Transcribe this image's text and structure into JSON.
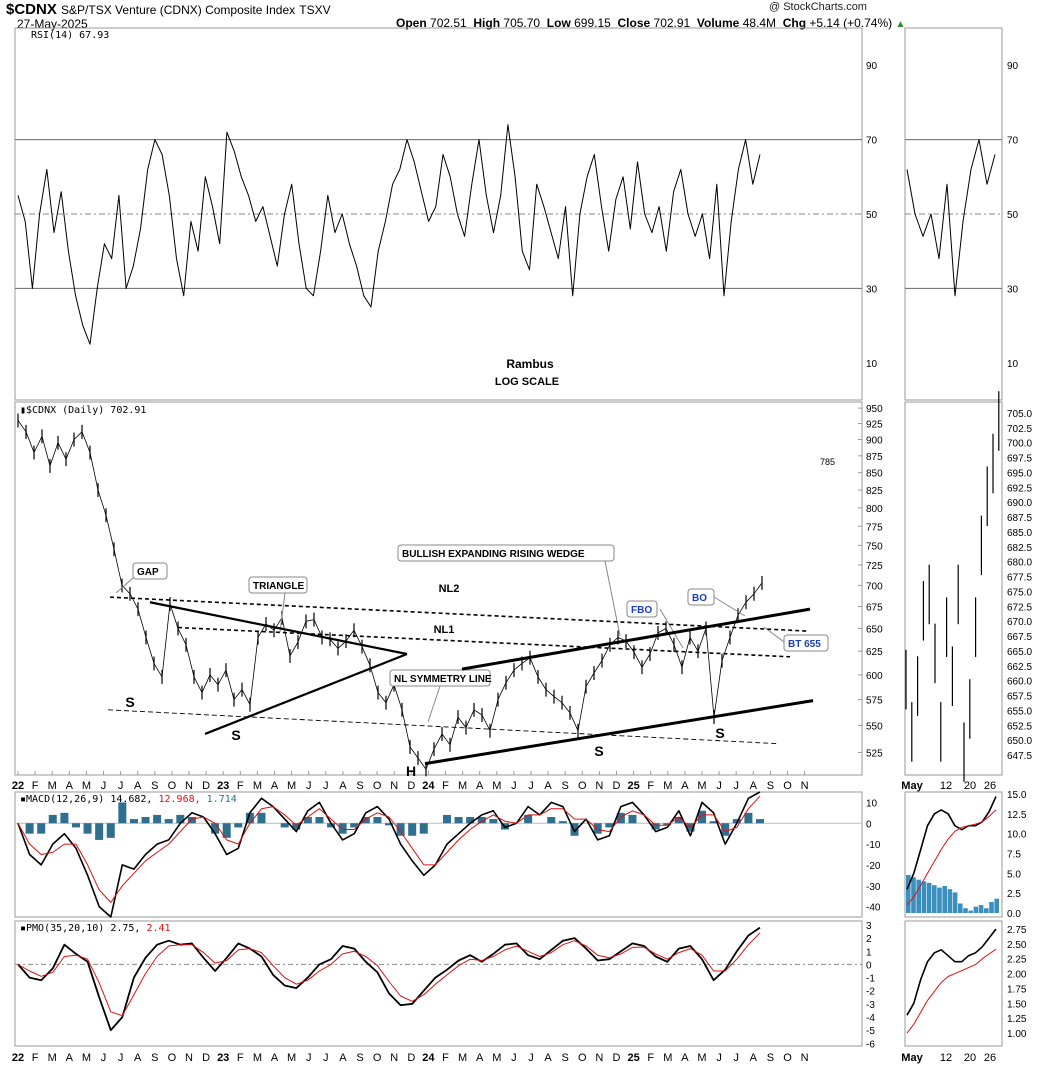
{
  "header": {
    "symbol": "$CDNX",
    "name": "S&P/TSX Venture (CDNX) Composite Index",
    "exchange": "TSXV",
    "date": "27-May-2025",
    "watermark": "@ StockCharts.com",
    "ohlc": {
      "open_label": "Open",
      "open": "702.51",
      "high_label": "High",
      "high": "705.70",
      "low_label": "Low",
      "low": "699.15",
      "close_label": "Close",
      "close": "702.91",
      "volume_label": "Volume",
      "volume": "48.4M",
      "chg_label": "Chg",
      "chg": "+5.14 (+0.74%)"
    }
  },
  "chart_data": [
    {
      "type": "line",
      "panel": "rsi",
      "title": "RSI(14) 67.93",
      "ylim": [
        0,
        100
      ],
      "y_ticks": [
        10,
        30,
        50,
        70,
        90
      ],
      "reference_lines": [
        30,
        70
      ],
      "center_line": 50,
      "notes": [
        "Rambus",
        "LOG SCALE"
      ],
      "series": [
        {
          "values": [
            55,
            48,
            30,
            50,
            62,
            45,
            56,
            40,
            28,
            20,
            15,
            30,
            42,
            38,
            55,
            30,
            36,
            46,
            62,
            70,
            66,
            55,
            38,
            28,
            48,
            40,
            60,
            52,
            42,
            72,
            67,
            60,
            55,
            48,
            52,
            44,
            36,
            50,
            58,
            42,
            30,
            28,
            40,
            55,
            45,
            50,
            42,
            36,
            28,
            25,
            40,
            48,
            58,
            62,
            70,
            64,
            56,
            48,
            52,
            66,
            60,
            50,
            44,
            58,
            70,
            55,
            45,
            55,
            74,
            60,
            40,
            35,
            58,
            52,
            45,
            38,
            52,
            28,
            50,
            60,
            66,
            52,
            40,
            54,
            60,
            46,
            64,
            50,
            45,
            52,
            40,
            56,
            62,
            50,
            44,
            50,
            38,
            58,
            28,
            48,
            62,
            70,
            58,
            66
          ]
        }
      ]
    },
    {
      "type": "line",
      "panel": "price",
      "title": "$CDNX (Daily) 702.91",
      "scale": "log",
      "y_ticks": [
        525,
        550,
        575,
        600,
        625,
        650,
        675,
        700,
        725,
        750,
        775,
        800,
        825,
        850,
        875,
        900,
        925,
        950
      ],
      "x_ticks": [
        "22",
        "F",
        "M",
        "A",
        "M",
        "J",
        "J",
        "A",
        "S",
        "O",
        "N",
        "D",
        "23",
        "F",
        "M",
        "A",
        "M",
        "J",
        "J",
        "A",
        "S",
        "O",
        "N",
        "D",
        "24",
        "F",
        "M",
        "A",
        "M",
        "J",
        "J",
        "A",
        "S",
        "O",
        "N",
        "D",
        "25",
        "F",
        "M",
        "A",
        "M",
        "J",
        "J",
        "A",
        "S",
        "O",
        "N"
      ],
      "series": [
        {
          "values": [
            930,
            912,
            880,
            905,
            860,
            895,
            870,
            900,
            912,
            880,
            825,
            790,
            745,
            700,
            690,
            672,
            640,
            612,
            598,
            678,
            650,
            632,
            598,
            582,
            600,
            590,
            605,
            575,
            585,
            570,
            640,
            655,
            648,
            662,
            620,
            635,
            658,
            660,
            640,
            638,
            628,
            636,
            648,
            630,
            610,
            582,
            572,
            590,
            565,
            530,
            520,
            510,
            528,
            542,
            532,
            558,
            548,
            565,
            560,
            545,
            575,
            592,
            605,
            612,
            618,
            598,
            585,
            578,
            572,
            562,
            545,
            588,
            602,
            615,
            632,
            640,
            636,
            624,
            608,
            622,
            645,
            650,
            632,
            608,
            640,
            625,
            650,
            558,
            615,
            640,
            665,
            680,
            690,
            703
          ]
        }
      ],
      "annotations": [
        "785",
        "GAP",
        "TRIANGLE",
        "BULLISH EXPANDING RISING WEDGE",
        "NL2",
        "NL1",
        "NL SYMMETRY LINE",
        "FBO",
        "BO",
        "BT 655",
        "S",
        "S",
        "H",
        "S",
        "S"
      ]
    },
    {
      "type": "line",
      "panel": "price-inset",
      "x_ticks": [
        "May",
        "12",
        "20",
        "26"
      ],
      "y_ticks": [
        647.5,
        650.0,
        652.5,
        655.0,
        657.5,
        660.0,
        662.5,
        665.0,
        667.5,
        670.0,
        672.5,
        675.0,
        677.5,
        680.0,
        682.5,
        685.0,
        687.5,
        690.0,
        692.5,
        695.0,
        697.5,
        700.0,
        702.5,
        705.0
      ]
    },
    {
      "type": "line",
      "panel": "macd",
      "title": "MACD(12,26,9)",
      "values_text": [
        "14.682",
        "12.968",
        "1.714"
      ],
      "y_ticks": [
        10,
        0,
        -10,
        -20,
        -30,
        -40
      ],
      "series": [
        {
          "values": [
            0,
            -15,
            -20,
            -10,
            -5,
            -12,
            -25,
            -40,
            -45,
            -20,
            -22,
            -15,
            -10,
            -8,
            0,
            5,
            3,
            -5,
            -15,
            -12,
            5,
            12,
            8,
            2,
            -4,
            6,
            10,
            0,
            -8,
            -5,
            5,
            8,
            2,
            -10,
            -18,
            -25,
            -20,
            -10,
            -5,
            0,
            4,
            6,
            -2,
            0,
            8,
            4,
            10,
            8,
            -4,
            2,
            -8,
            -6,
            8,
            10,
            4,
            -4,
            -2,
            6,
            -6,
            10,
            5,
            -10,
            0,
            12,
            15
          ]
        },
        {
          "values": [
            0,
            -10,
            -15,
            -14,
            -10,
            -10,
            -20,
            -32,
            -38,
            -30,
            -24,
            -18,
            -14,
            -10,
            -4,
            2,
            3,
            0,
            -8,
            -10,
            0,
            7,
            8,
            4,
            -1,
            3,
            7,
            2,
            -3,
            -3,
            2,
            5,
            3,
            -4,
            -12,
            -20,
            -20,
            -14,
            -8,
            -3,
            1,
            4,
            1,
            0,
            4,
            4,
            7,
            7,
            2,
            2,
            -3,
            -4,
            3,
            6,
            4,
            -1,
            -1,
            3,
            -2,
            4,
            4,
            -4,
            -2,
            7,
            13
          ]
        }
      ]
    },
    {
      "type": "bar",
      "panel": "macd-inset",
      "y_ticks": [
        15.0,
        12.5,
        10.0,
        7.5,
        5.0,
        2.5,
        0.0
      ]
    },
    {
      "type": "line",
      "panel": "pmo",
      "title": "PMO(35,20,10)",
      "values_text": [
        "2.75",
        "2.41"
      ],
      "y_ticks": [
        3,
        2,
        1,
        0,
        -1,
        -2,
        -3,
        -4,
        -5,
        -6
      ],
      "series": [
        {
          "values": [
            0,
            -1,
            -1.2,
            -0.3,
            1.5,
            0.8,
            0.2,
            -2.5,
            -5,
            -4,
            -1,
            0.5,
            1.5,
            1.8,
            1.5,
            1.6,
            0.5,
            -0.5,
            0.5,
            1.6,
            1.2,
            0.6,
            -0.8,
            -1.6,
            -1.8,
            -1,
            0,
            0.4,
            1.4,
            1.2,
            0.2,
            -0.6,
            -2.2,
            -3.1,
            -3,
            -2,
            -1,
            -0.4,
            0.3,
            0.7,
            0.2,
            0.8,
            1.5,
            1.6,
            0.7,
            0.4,
            1.1,
            1.8,
            2,
            1.2,
            0.3,
            0.4,
            1,
            1.6,
            1.4,
            0.6,
            0.2,
            1.2,
            1.4,
            0.4,
            -1.2,
            -0.4,
            1,
            2.2,
            2.8
          ]
        },
        {
          "values": [
            0,
            -0.5,
            -0.9,
            -0.6,
            0.6,
            0.7,
            0.4,
            -1.4,
            -3.6,
            -3.9,
            -2.3,
            -0.7,
            0.6,
            1.4,
            1.5,
            1.5,
            0.9,
            0.1,
            0.3,
            1.1,
            1.2,
            0.9,
            -0.1,
            -1,
            -1.5,
            -1.2,
            -0.5,
            0,
            0.8,
            1,
            0.6,
            -0.1,
            -1.3,
            -2.4,
            -2.8,
            -2.3,
            -1.5,
            -0.8,
            -0.1,
            0.4,
            0.3,
            0.6,
            1.1,
            1.4,
            1,
            0.6,
            0.9,
            1.5,
            1.8,
            1.4,
            0.7,
            0.5,
            0.8,
            1.3,
            1.3,
            0.8,
            0.4,
            0.9,
            1.2,
            0.7,
            -0.5,
            -0.5,
            0.4,
            1.5,
            2.4
          ]
        }
      ]
    },
    {
      "type": "line",
      "panel": "pmo-inset",
      "y_ticks": [
        2.75,
        2.5,
        2.25,
        2.0,
        1.75,
        1.5,
        1.25,
        1.0
      ]
    }
  ]
}
